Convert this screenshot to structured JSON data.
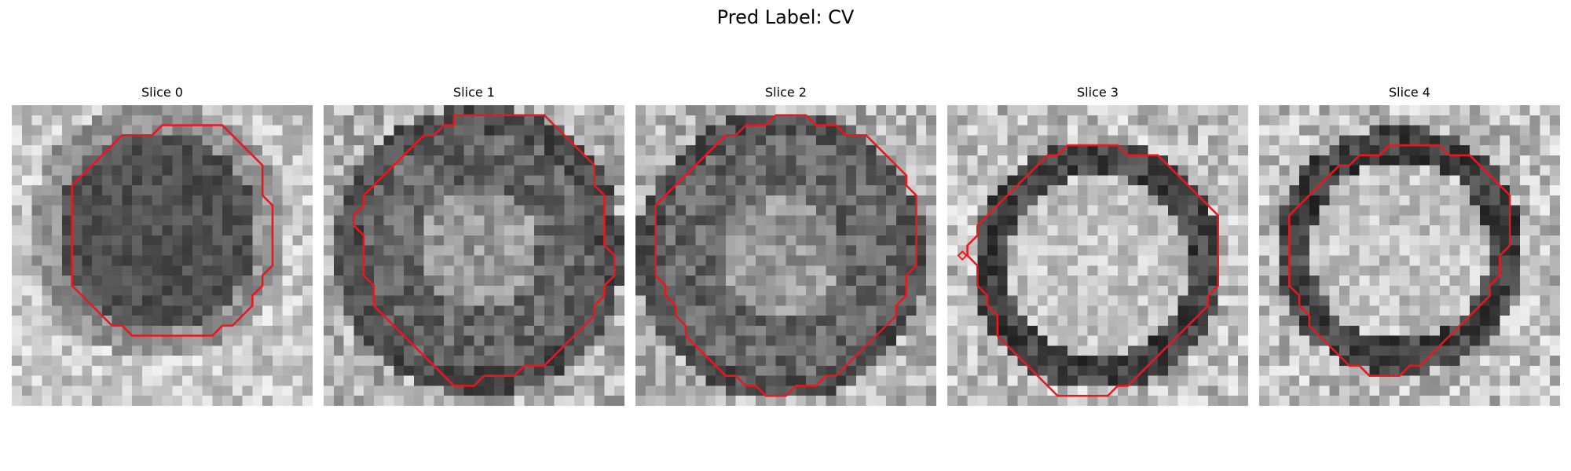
{
  "figure": {
    "title": "Pred Label: CV",
    "contour_color": "#e8181c",
    "panels": [
      {
        "title": "Slice 0",
        "pattern": "dark-core"
      },
      {
        "title": "Slice 1",
        "pattern": "dark-ring-large"
      },
      {
        "title": "Slice 2",
        "pattern": "dark-ring-large"
      },
      {
        "title": "Slice 3",
        "pattern": "bright-core-dark-ring"
      },
      {
        "title": "Slice 4",
        "pattern": "bright-core-dark-ring"
      }
    ]
  }
}
